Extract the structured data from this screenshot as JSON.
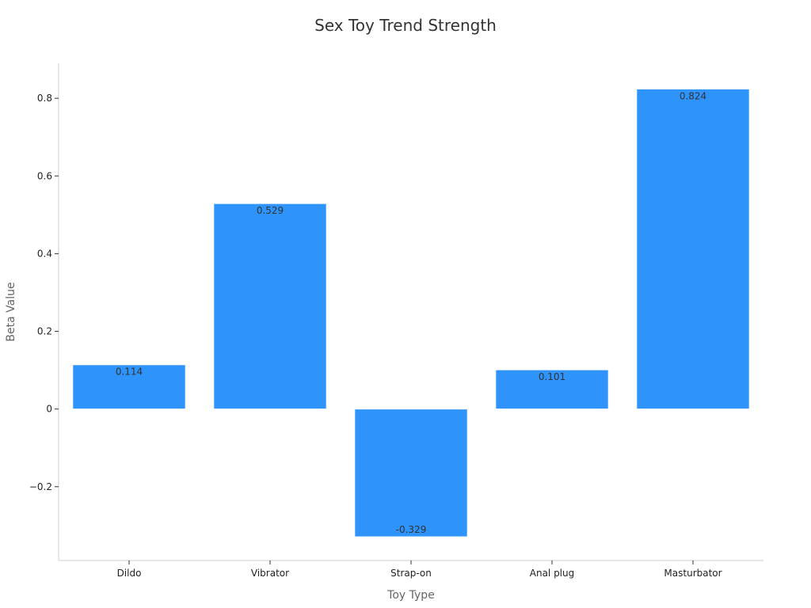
{
  "chart_data": {
    "type": "bar",
    "title": "Sex Toy Trend Strength",
    "xlabel": "Toy Type",
    "ylabel": "Beta Value",
    "categories": [
      "Dildo",
      "Vibrator",
      "Strap-on",
      "Anal plug",
      "Masturbator"
    ],
    "values": [
      0.114,
      0.529,
      -0.329,
      0.101,
      0.824
    ],
    "data_labels": [
      "0.114",
      "0.529",
      "-0.329",
      "0.101",
      "0.824"
    ],
    "ylim": [
      -0.39,
      0.89
    ],
    "yticks": [
      -0.2,
      0,
      0.2,
      0.4,
      0.6,
      0.8
    ],
    "ytick_labels": [
      "−0.2",
      "0",
      "0.2",
      "0.4",
      "0.6",
      "0.8"
    ],
    "bar_color": "#2e93fa",
    "grid": false,
    "legend": "none"
  }
}
